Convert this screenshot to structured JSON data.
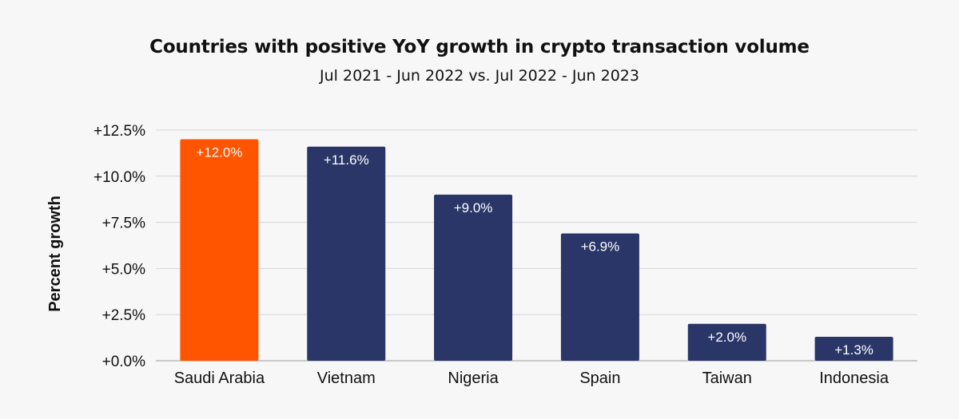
{
  "chart_data": {
    "type": "bar",
    "title": "Countries with positive YoY growth in crypto transaction volume",
    "subtitle": "Jul 2021 - Jun 2022 vs. Jul 2022 - Jun 2023",
    "xlabel": "",
    "ylabel": "Percent growth",
    "categories": [
      "Saudi Arabia",
      "Vietnam",
      "Nigeria",
      "Spain",
      "Taiwan",
      "Indonesia"
    ],
    "values": [
      12.0,
      11.6,
      9.0,
      6.9,
      2.0,
      1.3
    ],
    "data_labels": [
      "+12.0%",
      "+11.6%",
      "+9.0%",
      "+6.9%",
      "+2.0%",
      "+1.3%"
    ],
    "yticks": [
      0,
      2.5,
      5.0,
      7.5,
      10.0,
      12.5
    ],
    "ytick_labels": [
      "+0.0%",
      "+2.5%",
      "+5.0%",
      "+7.5%",
      "+10.0%",
      "+12.5%"
    ],
    "ylim": [
      0,
      12.5
    ],
    "grid": true,
    "legend": "none",
    "colors": {
      "highlight": "#ff5500",
      "bar": "#2b3668",
      "grid": "#d6d6d6",
      "text": "#111111",
      "label": "#ffffff"
    },
    "highlight_index": 0
  }
}
